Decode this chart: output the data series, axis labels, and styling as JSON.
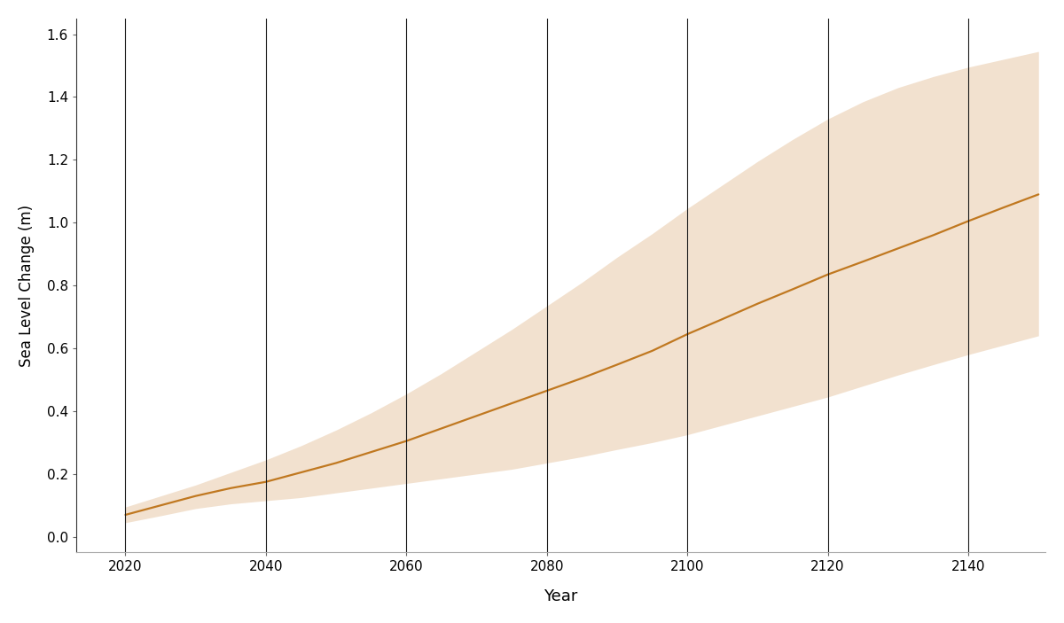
{
  "xlabel": "Year",
  "ylabel": "Sea Level Change (m)",
  "background_color": "#ffffff",
  "line_color": "#c07820",
  "fill_color": "#e8c9a8",
  "fill_alpha": 0.55,
  "xlim": [
    2013,
    2151
  ],
  "ylim": [
    -0.05,
    1.65
  ],
  "vlines": [
    2020,
    2040,
    2060,
    2080,
    2100,
    2120,
    2140
  ],
  "xticks": [
    2020,
    2040,
    2060,
    2080,
    2100,
    2120,
    2140
  ],
  "yticks": [
    0.0,
    0.2,
    0.4,
    0.6,
    0.8,
    1.0,
    1.2,
    1.4,
    1.6
  ],
  "years": [
    2020,
    2025,
    2030,
    2035,
    2040,
    2045,
    2050,
    2055,
    2060,
    2065,
    2070,
    2075,
    2080,
    2085,
    2090,
    2095,
    2100,
    2105,
    2110,
    2115,
    2120,
    2125,
    2130,
    2135,
    2140,
    2145,
    2150
  ],
  "central": [
    0.07,
    0.1,
    0.13,
    0.155,
    0.175,
    0.205,
    0.235,
    0.27,
    0.305,
    0.345,
    0.385,
    0.425,
    0.465,
    0.505,
    0.548,
    0.592,
    0.645,
    0.693,
    0.742,
    0.788,
    0.835,
    0.876,
    0.918,
    0.96,
    1.005,
    1.048,
    1.09
  ],
  "upper": [
    0.095,
    0.13,
    0.165,
    0.205,
    0.245,
    0.29,
    0.34,
    0.395,
    0.455,
    0.52,
    0.59,
    0.66,
    0.735,
    0.81,
    0.89,
    0.965,
    1.045,
    1.12,
    1.195,
    1.265,
    1.33,
    1.385,
    1.43,
    1.465,
    1.495,
    1.52,
    1.545
  ],
  "lower": [
    0.045,
    0.067,
    0.09,
    0.105,
    0.115,
    0.125,
    0.14,
    0.155,
    0.17,
    0.185,
    0.2,
    0.215,
    0.235,
    0.255,
    0.278,
    0.3,
    0.325,
    0.355,
    0.385,
    0.415,
    0.445,
    0.48,
    0.515,
    0.548,
    0.58,
    0.61,
    0.64
  ]
}
